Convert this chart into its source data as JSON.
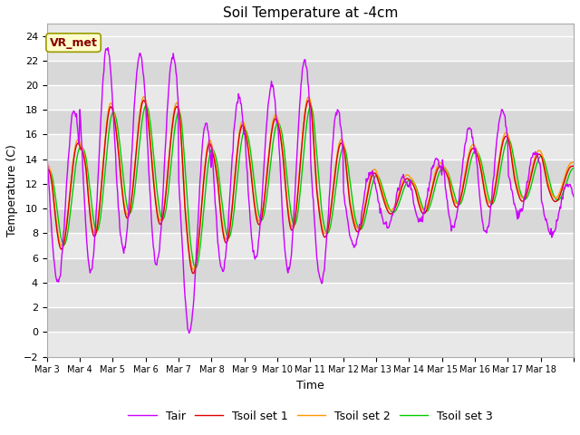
{
  "title": "Soil Temperature at -4cm",
  "xlabel": "Time",
  "ylabel": "Temperature (C)",
  "ylim": [
    -2,
    25
  ],
  "yticks": [
    -2,
    0,
    2,
    4,
    6,
    8,
    10,
    12,
    14,
    16,
    18,
    20,
    22,
    24
  ],
  "colors": {
    "Tair": "#cc00ff",
    "Tsoil1": "#dd0000",
    "Tsoil2": "#ff9900",
    "Tsoil3": "#00cc00"
  },
  "legend_labels": [
    "Tair",
    "Tsoil set 1",
    "Tsoil set 2",
    "Tsoil set 3"
  ],
  "annotation": "VR_met",
  "annotation_color": "#880000",
  "annotation_bg": "#ffffcc",
  "x_tick_labels": [
    "Mar 3",
    "Mar 4",
    "Mar 5",
    "Mar 6",
    "Mar 7",
    "Mar 8",
    "Mar 9",
    "Mar 10",
    "Mar 11",
    "Mar 12",
    "Mar 13",
    "Mar 14",
    "Mar 15",
    "Mar 16",
    "Mar 17",
    "Mar 18"
  ],
  "n_days": 16,
  "grid_colors": [
    "#e8e8e8",
    "#d8d8d8"
  ]
}
